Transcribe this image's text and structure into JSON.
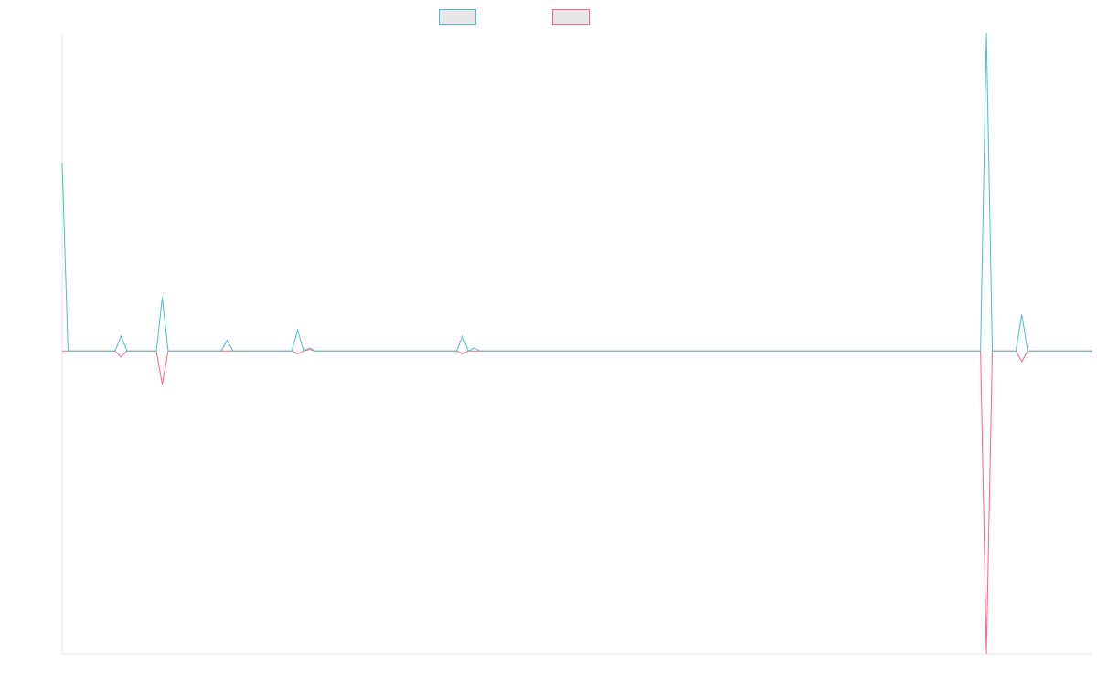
{
  "chart_data": {
    "type": "line",
    "title": "",
    "xlabel": "",
    "ylabel": "",
    "ylim": [
      -100,
      105
    ],
    "grid": false,
    "legend_position": "top-center",
    "series": [
      {
        "color": "#4bc0c0",
        "fill": "#e8e8e8",
        "values": [
          62,
          0,
          0,
          0,
          0,
          0,
          0,
          0,
          0,
          0,
          5,
          0,
          0,
          0,
          0,
          0,
          0,
          17.5,
          0,
          0,
          0,
          0,
          0,
          0,
          0,
          0,
          0,
          0,
          3.5,
          0,
          0,
          0,
          0,
          0,
          0,
          0,
          0,
          0,
          0,
          0,
          7,
          0,
          1,
          0,
          0,
          0,
          0,
          0,
          0,
          0,
          0,
          0,
          0,
          0,
          0,
          0,
          0,
          0,
          0,
          0,
          0,
          0,
          0,
          0,
          0,
          0,
          0,
          0,
          5,
          0,
          1,
          0,
          0,
          0,
          0,
          0,
          0,
          0,
          0,
          0,
          0,
          0,
          0,
          0,
          0,
          0,
          0,
          0,
          0,
          0,
          0,
          0,
          0,
          0,
          0,
          0,
          0,
          0,
          0,
          0,
          0,
          0,
          0,
          0,
          0,
          0,
          0,
          0,
          0,
          0,
          0,
          0,
          0,
          0,
          0,
          0,
          0,
          0,
          0,
          0,
          0,
          0,
          0,
          0,
          0,
          0,
          0,
          0,
          0,
          0,
          0,
          0,
          0,
          0,
          0,
          0,
          0,
          0,
          0,
          0,
          0,
          0,
          0,
          0,
          0,
          0,
          0,
          0,
          0,
          0,
          0,
          0,
          0,
          0,
          0,
          0,
          0,
          105,
          0,
          0,
          0,
          0,
          0,
          12,
          0,
          0,
          0,
          0,
          0,
          0,
          0,
          0,
          0,
          0,
          0,
          0
        ]
      },
      {
        "color": "#ff6384",
        "fill": "#e8e8e8",
        "values": [
          0,
          0,
          0,
          0,
          0,
          0,
          0,
          0,
          0,
          0,
          -2,
          0,
          0,
          0,
          0,
          0,
          0,
          -11,
          0,
          0,
          0,
          0,
          0,
          0,
          0,
          0,
          0,
          0,
          0,
          0,
          0,
          0,
          0,
          0,
          0,
          0,
          0,
          0,
          0,
          0,
          -1,
          0,
          0.5,
          0,
          0,
          0,
          0,
          0,
          0,
          0,
          0,
          0,
          0,
          0,
          0,
          0,
          0,
          0,
          0,
          0,
          0,
          0,
          0,
          0,
          0,
          0,
          0,
          0,
          -1,
          0,
          0,
          0,
          0,
          0,
          0,
          0,
          0,
          0,
          0,
          0,
          0,
          0,
          0,
          0,
          0,
          0,
          0,
          0,
          0,
          0,
          0,
          0,
          0,
          0,
          0,
          0,
          0,
          0,
          0,
          0,
          0,
          0,
          0,
          0,
          0,
          0,
          0,
          0,
          0,
          0,
          0,
          0,
          0,
          0,
          0,
          0,
          0,
          0,
          0,
          0,
          0,
          0,
          0,
          0,
          0,
          0,
          0,
          0,
          0,
          0,
          0,
          0,
          0,
          0,
          0,
          0,
          0,
          0,
          0,
          0,
          0,
          0,
          0,
          0,
          0,
          0,
          0,
          0,
          0,
          0,
          0,
          0,
          0,
          0,
          0,
          0,
          0,
          -100,
          0,
          0,
          0,
          0,
          0,
          -3.5,
          0,
          0,
          0,
          0,
          0,
          0,
          0,
          0,
          0,
          0,
          0,
          0
        ]
      }
    ]
  }
}
